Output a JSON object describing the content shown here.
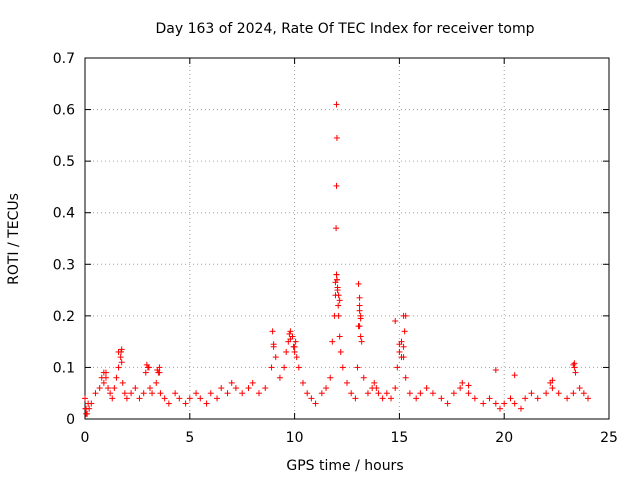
{
  "chart_data": {
    "type": "scatter",
    "title": "Day 163 of 2024, Rate Of TEC Index for receiver tomp",
    "xlabel": "GPS time / hours",
    "ylabel": "ROTI / TECUs",
    "xlim": [
      0,
      25
    ],
    "ylim": [
      0,
      0.7
    ],
    "x_ticks": [
      0,
      5,
      10,
      15,
      20,
      25
    ],
    "y_ticks": [
      0,
      0.1,
      0.2,
      0.3,
      0.4,
      0.5,
      0.6,
      0.7
    ],
    "x_tick_labels": [
      "0",
      "5",
      "10",
      "15",
      "20",
      "25"
    ],
    "y_tick_labels": [
      "0",
      "0.1",
      "0.2",
      "0.3",
      "0.4",
      "0.5",
      "0.6",
      "0.7"
    ],
    "grid": true,
    "legend": "none",
    "marker": "+",
    "color": "#ff0000",
    "series": [
      {
        "x": [
          0.0,
          0.05,
          0.1,
          0.15,
          0.2,
          0.3,
          0.5,
          0.7,
          0.8,
          0.9,
          1.0,
          1.1,
          1.2,
          1.3,
          1.4,
          1.5,
          1.6,
          1.7,
          1.72,
          1.75,
          1.8,
          1.9,
          2.0,
          2.2,
          2.4,
          2.6,
          2.8,
          2.9,
          3.0,
          3.1,
          3.2,
          3.4,
          3.5,
          3.55,
          3.6,
          3.8,
          4.0,
          4.3,
          4.5,
          4.8,
          5.0,
          5.3,
          5.5,
          5.8,
          6.0,
          6.3,
          6.5,
          6.8,
          7.0,
          7.2,
          7.5,
          7.8,
          8.0,
          8.3,
          8.6,
          8.9,
          9.0,
          9.1,
          9.3,
          9.5,
          9.6,
          9.7,
          9.8,
          9.9,
          10.0,
          10.1,
          10.2,
          10.4,
          10.6,
          10.8,
          11.0,
          11.3,
          11.5,
          11.7,
          11.8,
          11.9,
          11.95,
          12.0,
          12.02,
          12.05,
          12.08,
          12.1,
          12.15,
          12.2,
          12.3,
          12.5,
          12.7,
          12.9,
          13.0,
          13.05,
          13.1,
          13.15,
          13.2,
          13.3,
          13.5,
          13.7,
          13.8,
          13.9,
          14.0,
          14.2,
          14.4,
          14.6,
          14.8,
          14.9,
          15.0,
          15.1,
          15.2,
          15.3,
          15.5,
          15.8,
          16.0,
          16.3,
          16.6,
          17.0,
          17.3,
          17.6,
          17.9,
          18.0,
          18.3,
          18.6,
          19.0,
          19.3,
          19.6,
          19.8,
          20.0,
          20.3,
          20.5,
          20.8,
          21.0,
          21.3,
          21.6,
          22.0,
          22.2,
          22.3,
          22.6,
          23.0,
          23.3,
          23.35,
          23.4,
          23.6,
          23.8,
          24.0,
          0.02,
          0.05,
          0.9,
          1.0,
          1.6,
          1.75,
          2.95,
          3.05,
          3.45,
          3.55,
          8.95,
          9.0,
          9.75,
          9.8,
          9.95,
          10.0,
          10.05,
          11.95,
          12.0,
          12.02,
          12.05,
          12.1,
          12.15,
          13.05,
          13.1,
          13.1,
          13.15,
          14.8,
          15.0,
          15.1,
          15.2,
          15.25,
          18.3,
          19.6,
          20.5,
          22.3,
          23.3,
          23.35,
          11.98,
          12.0,
          12.02,
          12.0,
          13.1,
          13.15,
          15.3,
          15.2
        ],
        "y": [
          0.04,
          0.02,
          0.01,
          0.03,
          0.02,
          0.03,
          0.05,
          0.06,
          0.08,
          0.07,
          0.09,
          0.06,
          0.05,
          0.04,
          0.06,
          0.08,
          0.1,
          0.12,
          0.13,
          0.11,
          0.07,
          0.05,
          0.04,
          0.05,
          0.06,
          0.04,
          0.05,
          0.09,
          0.1,
          0.06,
          0.05,
          0.07,
          0.09,
          0.1,
          0.05,
          0.04,
          0.03,
          0.05,
          0.04,
          0.03,
          0.04,
          0.05,
          0.04,
          0.03,
          0.05,
          0.04,
          0.06,
          0.05,
          0.07,
          0.06,
          0.05,
          0.06,
          0.07,
          0.05,
          0.06,
          0.1,
          0.14,
          0.12,
          0.08,
          0.1,
          0.13,
          0.15,
          0.17,
          0.16,
          0.14,
          0.12,
          0.1,
          0.07,
          0.05,
          0.04,
          0.03,
          0.05,
          0.06,
          0.08,
          0.15,
          0.2,
          0.24,
          0.28,
          0.27,
          0.25,
          0.22,
          0.2,
          0.16,
          0.13,
          0.1,
          0.07,
          0.05,
          0.04,
          0.1,
          0.18,
          0.22,
          0.2,
          0.15,
          0.08,
          0.05,
          0.06,
          0.07,
          0.06,
          0.05,
          0.04,
          0.05,
          0.04,
          0.06,
          0.1,
          0.13,
          0.15,
          0.12,
          0.08,
          0.05,
          0.04,
          0.05,
          0.06,
          0.05,
          0.04,
          0.03,
          0.05,
          0.06,
          0.07,
          0.05,
          0.04,
          0.03,
          0.04,
          0.03,
          0.02,
          0.03,
          0.04,
          0.03,
          0.02,
          0.04,
          0.05,
          0.04,
          0.05,
          0.07,
          0.06,
          0.05,
          0.04,
          0.05,
          0.1,
          0.09,
          0.06,
          0.05,
          0.04,
          0.02,
          0.01,
          0.09,
          0.08,
          0.13,
          0.135,
          0.105,
          0.1,
          0.095,
          0.09,
          0.17,
          0.145,
          0.165,
          0.155,
          0.14,
          0.13,
          0.15,
          0.265,
          0.28,
          0.27,
          0.255,
          0.24,
          0.23,
          0.262,
          0.235,
          0.21,
          0.195,
          0.19,
          0.145,
          0.12,
          0.2,
          0.17,
          0.065,
          0.095,
          0.085,
          0.075,
          0.105,
          0.108,
          0.37,
          0.452,
          0.545,
          0.61,
          0.18,
          0.16,
          0.2,
          0.14
        ]
      }
    ]
  }
}
